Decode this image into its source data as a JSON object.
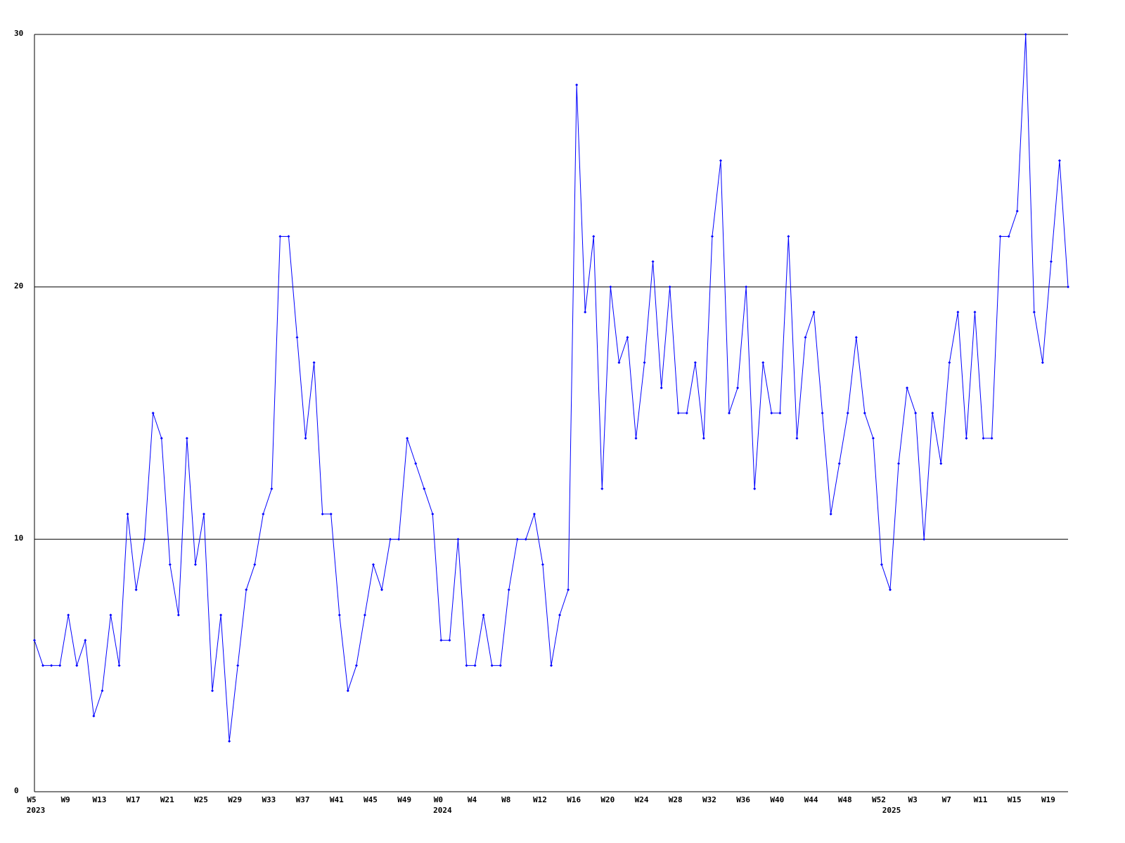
{
  "chart_data": {
    "type": "line",
    "categories": [
      "W5",
      null,
      null,
      null,
      "W9",
      null,
      null,
      null,
      "W13",
      null,
      null,
      null,
      "W17",
      null,
      null,
      null,
      "W21",
      null,
      null,
      null,
      "W25",
      null,
      null,
      null,
      "W29",
      null,
      null,
      null,
      "W33",
      null,
      null,
      null,
      "W37",
      null,
      null,
      null,
      "W41",
      null,
      null,
      null,
      "W45",
      null,
      null,
      null,
      "W49",
      null,
      null,
      null,
      "W0",
      null,
      null,
      null,
      "W4",
      null,
      null,
      null,
      "W8",
      null,
      null,
      null,
      "W12",
      null,
      null,
      null,
      "W16",
      null,
      null,
      null,
      "W20",
      null,
      null,
      null,
      "W24",
      null,
      null,
      null,
      "W28",
      null,
      null,
      null,
      "W32",
      null,
      null,
      null,
      "W36",
      null,
      null,
      null,
      "W40",
      null,
      null,
      null,
      "W44",
      null,
      null,
      null,
      "W48",
      null,
      null,
      null,
      "W52",
      null,
      null,
      null,
      "W3",
      null,
      null,
      null,
      "W7",
      null,
      null,
      null,
      "W11",
      null,
      null,
      null,
      "W15",
      null,
      null,
      null,
      "W19",
      null,
      null
    ],
    "year_labels": [
      {
        "label": "2023",
        "index": 0
      },
      {
        "label": "2024",
        "index": 48
      },
      {
        "label": "2025",
        "index": 101
      }
    ],
    "series": [
      {
        "color": "#0000ff",
        "values": [
          6,
          5,
          5,
          5,
          7,
          5,
          6,
          3,
          4,
          7,
          5,
          11,
          8,
          10,
          15,
          14,
          9,
          7,
          14,
          9,
          11,
          4,
          7,
          2,
          5,
          8,
          9,
          11,
          12,
          22,
          22,
          18,
          14,
          17,
          11,
          11,
          7,
          4,
          5,
          7,
          9,
          8,
          10,
          10,
          14,
          13,
          12,
          11,
          6,
          6,
          10,
          5,
          5,
          7,
          5,
          5,
          8,
          10,
          10,
          11,
          9,
          5,
          7,
          8,
          28,
          19,
          22,
          12,
          20,
          17,
          18,
          14,
          17,
          21,
          16,
          20,
          15,
          15,
          17,
          14,
          22,
          25,
          15,
          16,
          20,
          12,
          17,
          15,
          15,
          22,
          14,
          18,
          19,
          15,
          11,
          13,
          15,
          18,
          15,
          14,
          9,
          8,
          13,
          16,
          15,
          10,
          15,
          13,
          17,
          19,
          14,
          19,
          14,
          14,
          22,
          22,
          23,
          30,
          19,
          17,
          21,
          25,
          20
        ]
      }
    ],
    "ylim": [
      0,
      30
    ],
    "yticks": [
      0,
      10,
      20,
      30
    ],
    "grid": true
  }
}
